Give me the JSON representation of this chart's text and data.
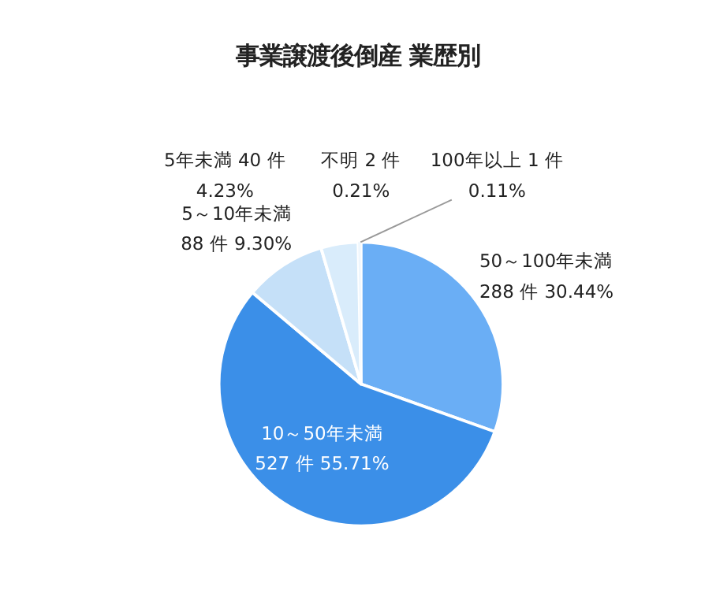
{
  "chart_data": {
    "type": "pie",
    "title": "事業譲渡後倒産 業歴別",
    "categories": [
      "50～100年未満",
      "10～50年未満",
      "5～10年未満",
      "5年未満",
      "不明",
      "100年以上"
    ],
    "values": [
      288,
      527,
      88,
      40,
      2,
      1
    ],
    "value_labels": [
      "288 件 30.44%",
      "527 件 55.71%",
      "88 件 9.30%",
      "40 件 4.23%",
      "2 件 0.21%",
      "1 件 0.11%"
    ],
    "colors": [
      "#6aaef5",
      "#3b8fe8",
      "#c5e0f8",
      "#d9ecfb",
      "#eef6fd",
      "#f4f9fe"
    ]
  }
}
